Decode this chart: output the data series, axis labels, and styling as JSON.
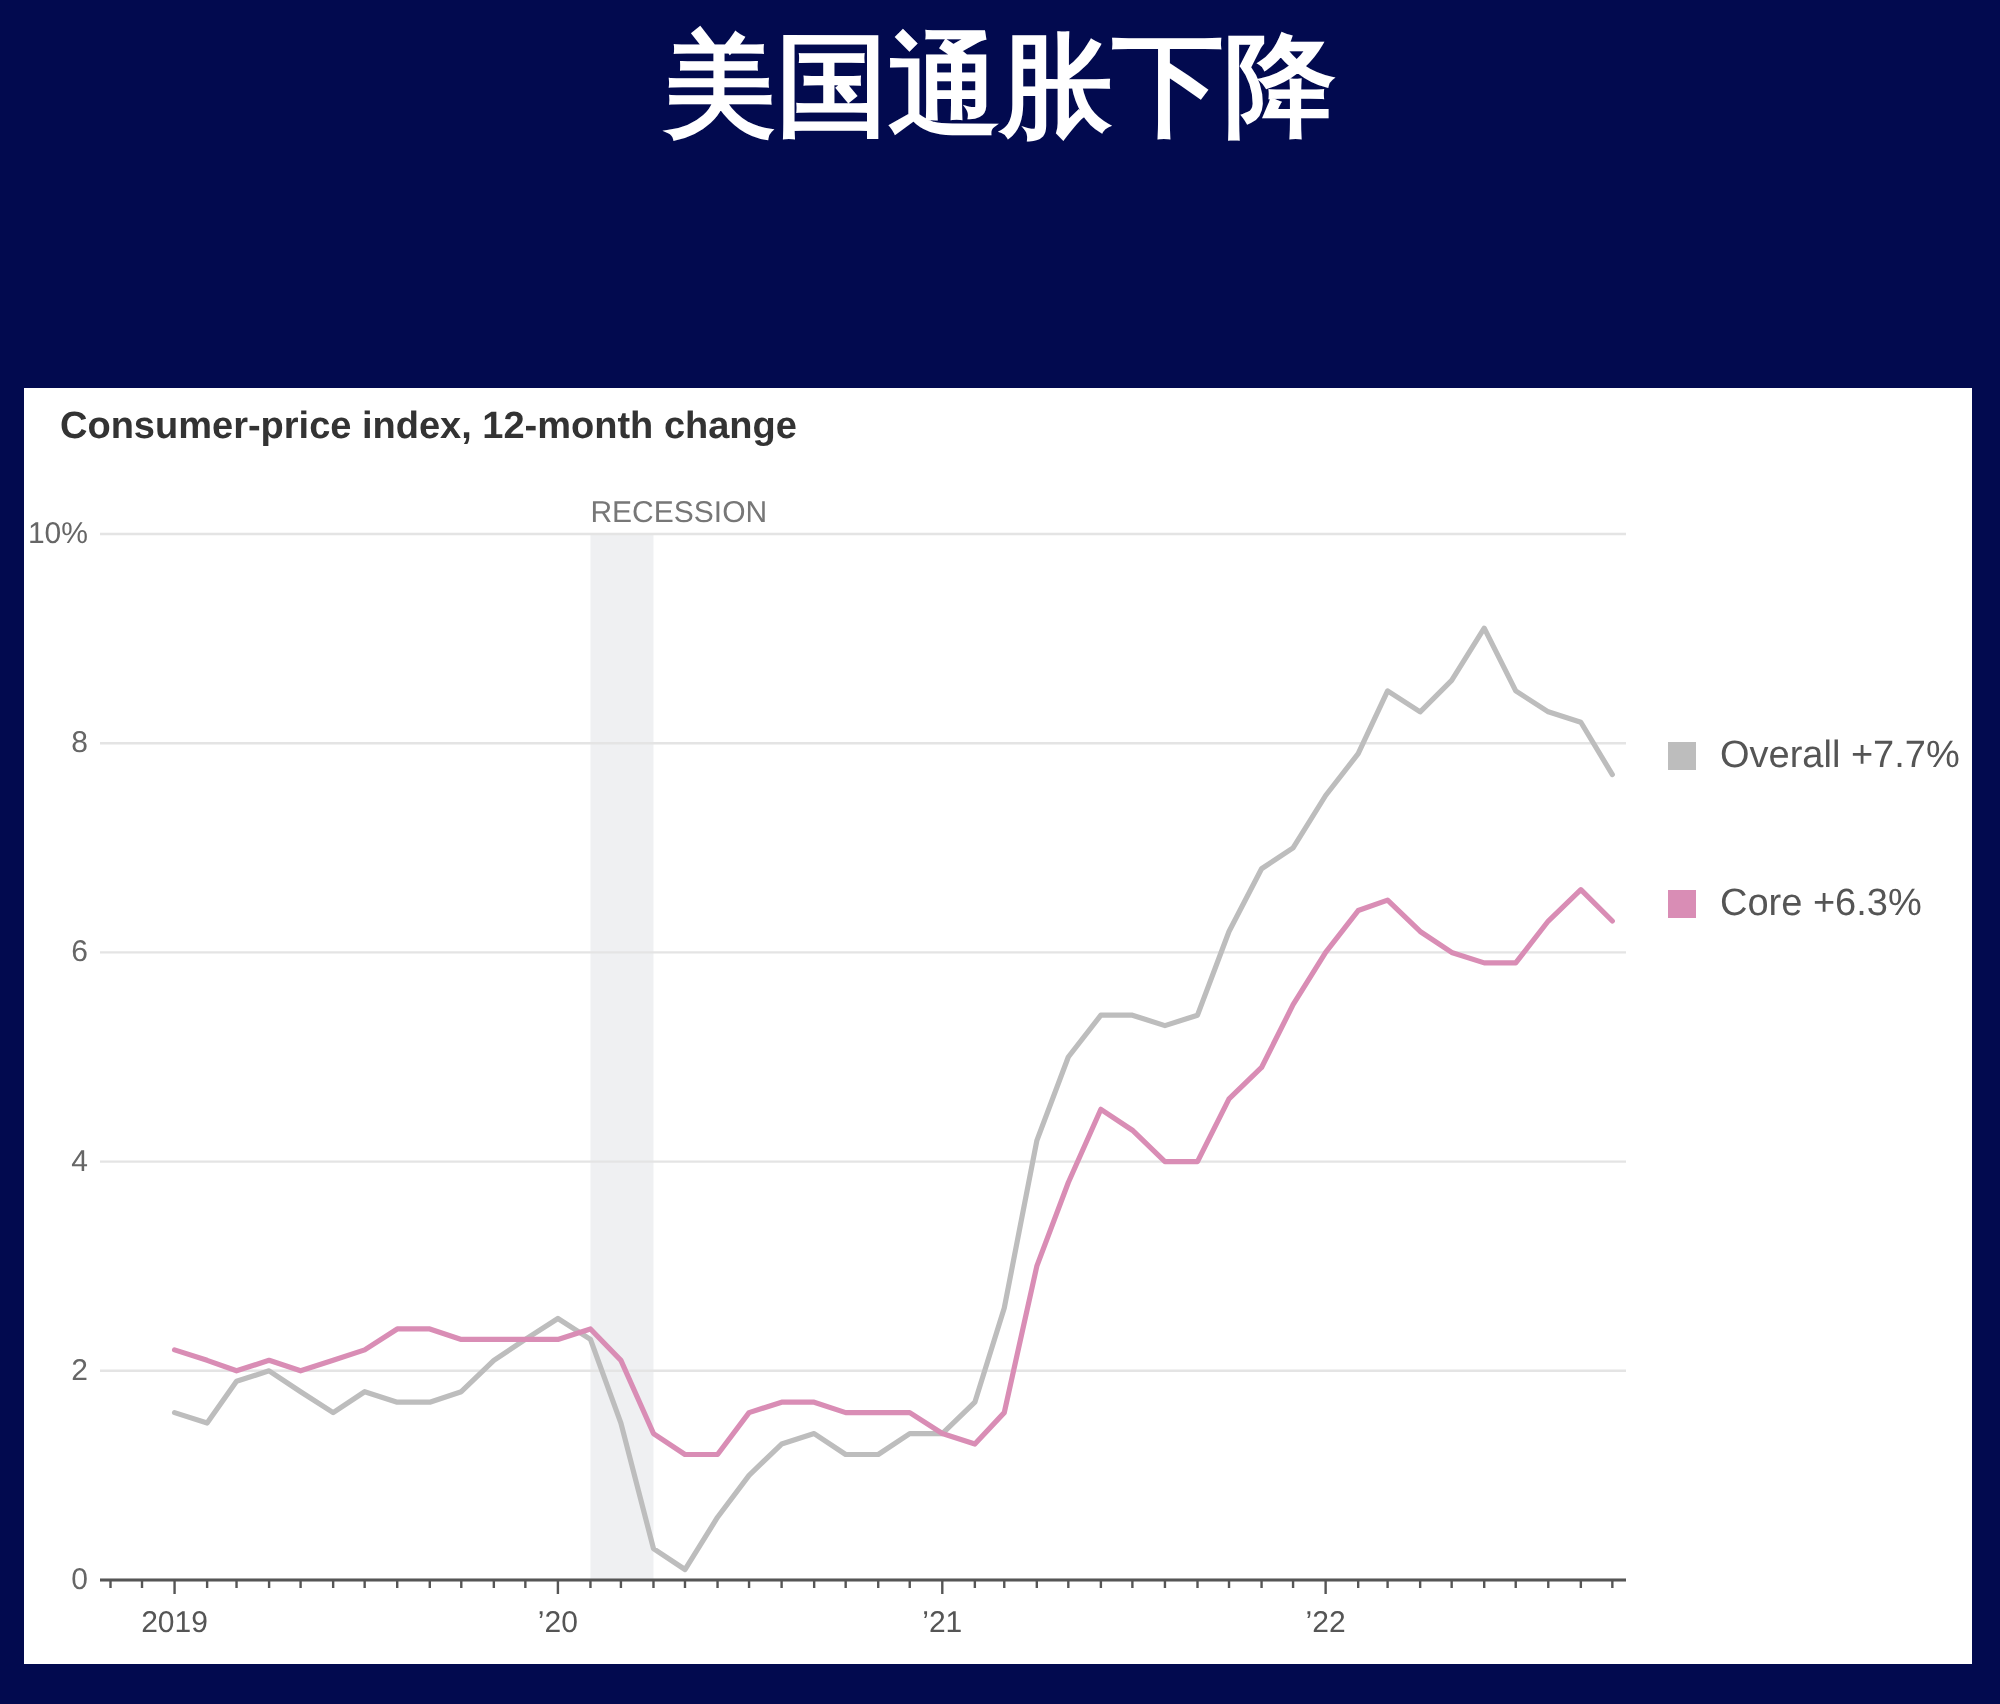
{
  "chart_data": {
    "type": "line",
    "title": "美国通胀下降",
    "subtitle": "Consumer-price index, 12-month change",
    "x": [
      "2019-01",
      "2019-02",
      "2019-03",
      "2019-04",
      "2019-05",
      "2019-06",
      "2019-07",
      "2019-08",
      "2019-09",
      "2019-10",
      "2019-11",
      "2019-12",
      "2020-01",
      "2020-02",
      "2020-03",
      "2020-04",
      "2020-05",
      "2020-06",
      "2020-07",
      "2020-08",
      "2020-09",
      "2020-10",
      "2020-11",
      "2020-12",
      "2021-01",
      "2021-02",
      "2021-03",
      "2021-04",
      "2021-05",
      "2021-06",
      "2021-07",
      "2021-08",
      "2021-09",
      "2021-10",
      "2021-11",
      "2021-12",
      "2022-01",
      "2022-02",
      "2022-03",
      "2022-04",
      "2022-05",
      "2022-06",
      "2022-07",
      "2022-08",
      "2022-09",
      "2022-10"
    ],
    "series": [
      {
        "name": "Overall +7.7%",
        "color": "#bdbdbd",
        "values": [
          1.6,
          1.5,
          1.9,
          2.0,
          1.8,
          1.6,
          1.8,
          1.7,
          1.7,
          1.8,
          2.1,
          2.3,
          2.5,
          2.3,
          1.5,
          0.3,
          0.1,
          0.6,
          1.0,
          1.3,
          1.4,
          1.2,
          1.2,
          1.4,
          1.4,
          1.7,
          2.6,
          4.2,
          5.0,
          5.4,
          5.4,
          5.3,
          5.4,
          6.2,
          6.8,
          7.0,
          7.5,
          7.9,
          8.5,
          8.3,
          8.6,
          9.1,
          8.5,
          8.3,
          8.2,
          7.7
        ]
      },
      {
        "name": "Core +6.3%",
        "color": "#d98db5",
        "values": [
          2.2,
          2.1,
          2.0,
          2.1,
          2.0,
          2.1,
          2.2,
          2.4,
          2.4,
          2.3,
          2.3,
          2.3,
          2.3,
          2.4,
          2.1,
          1.4,
          1.2,
          1.2,
          1.6,
          1.7,
          1.7,
          1.6,
          1.6,
          1.6,
          1.4,
          1.3,
          1.6,
          3.0,
          3.8,
          4.5,
          4.3,
          4.0,
          4.0,
          4.6,
          4.9,
          5.5,
          6.0,
          6.4,
          6.5,
          6.2,
          6.0,
          5.9,
          5.9,
          6.3,
          6.6,
          6.3
        ]
      }
    ],
    "xlim": [
      "2018-10-22",
      "2022-10-14"
    ],
    "xticks": [
      {
        "value": "2018-11",
        "label": null
      },
      {
        "value": "2018-12",
        "label": null
      },
      {
        "value": "2019-01",
        "label": "2019"
      },
      {
        "value": "2019-02",
        "label": null
      },
      {
        "value": "2019-03",
        "label": null
      },
      {
        "value": "2019-04",
        "label": null
      },
      {
        "value": "2019-05",
        "label": null
      },
      {
        "value": "2019-06",
        "label": null
      },
      {
        "value": "2019-07",
        "label": null
      },
      {
        "value": "2019-08",
        "label": null
      },
      {
        "value": "2019-09",
        "label": null
      },
      {
        "value": "2019-10",
        "label": null
      },
      {
        "value": "2019-11",
        "label": null
      },
      {
        "value": "2019-12",
        "label": null
      },
      {
        "value": "2020-01",
        "label": "’20"
      },
      {
        "value": "2020-02",
        "label": null
      },
      {
        "value": "2020-03",
        "label": null
      },
      {
        "value": "2020-04",
        "label": null
      },
      {
        "value": "2020-05",
        "label": null
      },
      {
        "value": "2020-06",
        "label": null
      },
      {
        "value": "2020-07",
        "label": null
      },
      {
        "value": "2020-08",
        "label": null
      },
      {
        "value": "2020-09",
        "label": null
      },
      {
        "value": "2020-10",
        "label": null
      },
      {
        "value": "2020-11",
        "label": null
      },
      {
        "value": "2020-12",
        "label": null
      },
      {
        "value": "2021-01",
        "label": "’21"
      },
      {
        "value": "2021-02",
        "label": null
      },
      {
        "value": "2021-03",
        "label": null
      },
      {
        "value": "2021-04",
        "label": null
      },
      {
        "value": "2021-05",
        "label": null
      },
      {
        "value": "2021-06",
        "label": null
      },
      {
        "value": "2021-07",
        "label": null
      },
      {
        "value": "2021-08",
        "label": null
      },
      {
        "value": "2021-09",
        "label": null
      },
      {
        "value": "2021-10",
        "label": null
      },
      {
        "value": "2021-11",
        "label": null
      },
      {
        "value": "2021-12",
        "label": null
      },
      {
        "value": "2022-01",
        "label": "’22"
      },
      {
        "value": "2022-02",
        "label": null
      },
      {
        "value": "2022-03",
        "label": null
      },
      {
        "value": "2022-04",
        "label": null
      },
      {
        "value": "2022-05",
        "label": null
      },
      {
        "value": "2022-06",
        "label": null
      },
      {
        "value": "2022-07",
        "label": null
      },
      {
        "value": "2022-08",
        "label": null
      },
      {
        "value": "2022-09",
        "label": null
      },
      {
        "value": "2022-10",
        "label": null
      }
    ],
    "ylim": [
      0,
      10
    ],
    "yticks": [
      0,
      2,
      4,
      6,
      8,
      {
        "value": 10,
        "label": "10%"
      }
    ],
    "grid": "y",
    "legend": "right",
    "bands": [
      {
        "axis": "x",
        "from": "2020-02",
        "to": "2020-04",
        "label": "RECESSION",
        "color": "#eff0f2"
      }
    ]
  }
}
